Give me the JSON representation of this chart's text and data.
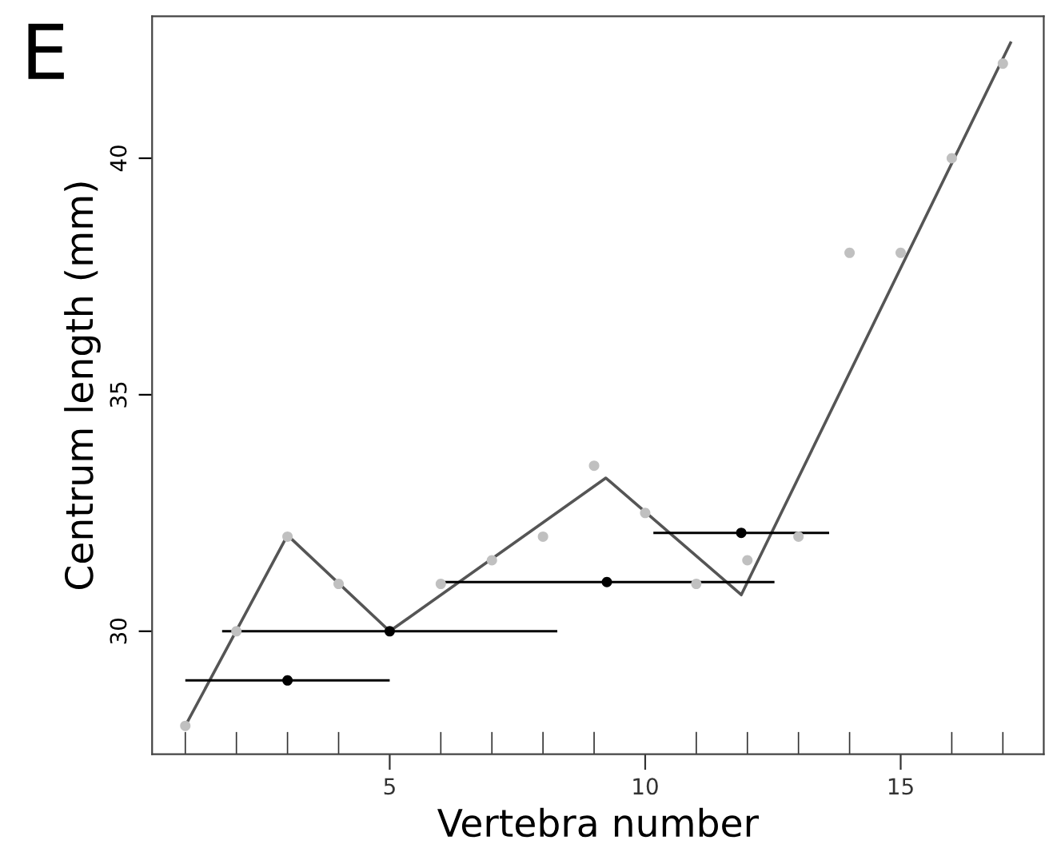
{
  "chart_data": {
    "type": "scatter",
    "title": "E",
    "xlabel": "Vertebra number",
    "ylabel": "Centrum length (mm)",
    "xlim": [
      0.35,
      17.8
    ],
    "ylim": [
      27.4,
      43.0
    ],
    "xticks": [
      {
        "value": 1,
        "label": null
      },
      {
        "value": 2,
        "label": null
      },
      {
        "value": 3,
        "label": null
      },
      {
        "value": 4,
        "label": null
      },
      5,
      {
        "value": 6,
        "label": null
      },
      {
        "value": 7,
        "label": null
      },
      {
        "value": 8,
        "label": null
      },
      {
        "value": 9,
        "label": null
      },
      10,
      {
        "value": 11,
        "label": null
      },
      {
        "value": 12,
        "label": null
      },
      {
        "value": 13,
        "label": null
      },
      {
        "value": 14,
        "label": null
      },
      15,
      {
        "value": 16,
        "label": null
      },
      {
        "value": 17,
        "label": null
      }
    ],
    "yticks": [
      30,
      35,
      40
    ],
    "grid": false,
    "legend": false,
    "marker": "circle",
    "series": [
      {
        "color": "#c0c0c0",
        "x": [
          1,
          2,
          3,
          4,
          5,
          6,
          7,
          8,
          9,
          10,
          11,
          12,
          13,
          14,
          15,
          16,
          17
        ],
        "values": [
          28.0,
          30.0,
          32.0,
          31.0,
          null,
          31.0,
          31.5,
          32.0,
          33.5,
          32.5,
          31.0,
          31.5,
          32.0,
          38.0,
          38.0,
          40.0,
          42.0
        ]
      },
      {
        "type": "line",
        "color": "#555555",
        "marker": "none",
        "line_style": "solid",
        "x": [
          1,
          3,
          5,
          9.23,
          11.88,
          17.15
        ],
        "values": [
          28.0,
          32.03,
          30.0,
          33.24,
          30.77,
          42.44
        ]
      },
      {
        "color": "#000000",
        "x": [
          3,
          5,
          9.25,
          11.88
        ],
        "values": [
          28.96,
          30.0,
          31.04,
          32.08
        ],
        "xerrors": [
          2.0,
          3.28,
          3.28,
          1.72
        ]
      }
    ]
  }
}
